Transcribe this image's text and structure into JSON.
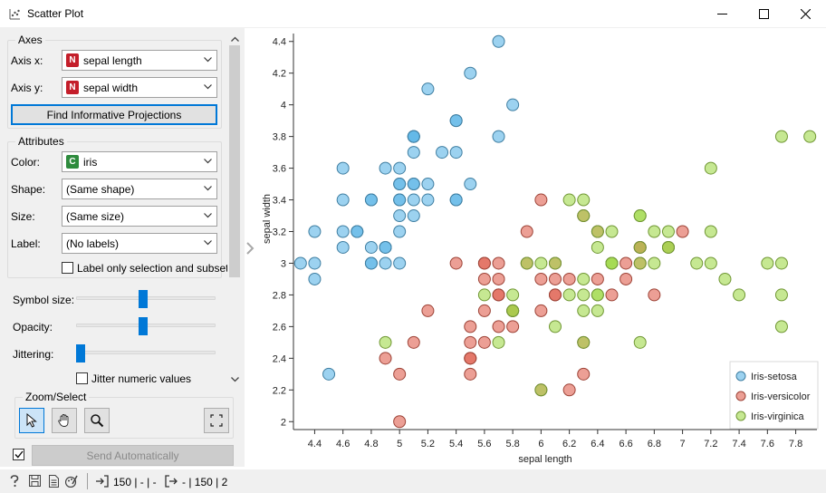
{
  "window": {
    "title": "Scatter Plot"
  },
  "axes": {
    "group_title": "Axes",
    "axis_x_label": "Axis x:",
    "axis_x_value": "sepal length",
    "axis_x_badge": "N",
    "axis_y_label": "Axis y:",
    "axis_y_value": "sepal width",
    "axis_y_badge": "N",
    "find_button": "Find Informative Projections"
  },
  "attributes": {
    "group_title": "Attributes",
    "color_label": "Color:",
    "color_value": "iris",
    "color_badge": "C",
    "shape_label": "Shape:",
    "shape_value": "(Same shape)",
    "size_label": "Size:",
    "size_value": "(Same size)",
    "label_label": "Label:",
    "label_value": "(No labels)",
    "label_only_checkbox": "Label only selection and subset"
  },
  "sliders": {
    "symbol_size_label": "Symbol size:",
    "symbol_size_level": 0.48,
    "opacity_label": "Opacity:",
    "opacity_level": 0.48,
    "jittering_label": "Jittering:",
    "jittering_level": 0.0,
    "jitter_numeric_label": "Jitter numeric values"
  },
  "zoom": {
    "group_title": "Zoom/Select"
  },
  "send": {
    "checkbox_checked": true,
    "button_label": "Send Automatically"
  },
  "statusbar": {
    "input_text": "150 | - | -",
    "output_text": "- | 150 | 2"
  },
  "colors": {
    "setosa": "#5ab4e6",
    "versicolor": "#e05f4f",
    "virginica": "#a0d84a",
    "accent": "#0078d7"
  },
  "chart_data": {
    "type": "scatter",
    "xlabel": "sepal length",
    "ylabel": "sepal width",
    "xlim": [
      4.25,
      7.95
    ],
    "ylim": [
      1.95,
      4.45
    ],
    "xticks": [
      "4.4",
      "4.6",
      "4.8",
      "5",
      "5.2",
      "5.4",
      "5.6",
      "5.8",
      "6",
      "6.2",
      "6.4",
      "6.6",
      "6.8",
      "7",
      "7.2",
      "7.4",
      "7.6",
      "7.8"
    ],
    "yticks": [
      "2",
      "2.2",
      "2.4",
      "2.6",
      "2.8",
      "3",
      "3.2",
      "3.4",
      "3.6",
      "3.8",
      "4",
      "4.2",
      "4.4"
    ],
    "legend_position": "bottom-right",
    "series": [
      {
        "name": "Iris-setosa",
        "color": "#5ab4e6",
        "points": [
          [
            5.1,
            3.5
          ],
          [
            4.9,
            3.0
          ],
          [
            4.7,
            3.2
          ],
          [
            4.6,
            3.1
          ],
          [
            5.0,
            3.6
          ],
          [
            5.4,
            3.9
          ],
          [
            4.6,
            3.4
          ],
          [
            5.0,
            3.4
          ],
          [
            4.4,
            2.9
          ],
          [
            4.9,
            3.1
          ],
          [
            5.4,
            3.7
          ],
          [
            4.8,
            3.4
          ],
          [
            4.8,
            3.0
          ],
          [
            4.3,
            3.0
          ],
          [
            5.8,
            4.0
          ],
          [
            5.7,
            4.4
          ],
          [
            5.4,
            3.9
          ],
          [
            5.1,
            3.5
          ],
          [
            5.7,
            3.8
          ],
          [
            5.1,
            3.8
          ],
          [
            5.4,
            3.4
          ],
          [
            5.1,
            3.7
          ],
          [
            4.6,
            3.6
          ],
          [
            5.1,
            3.3
          ],
          [
            4.8,
            3.4
          ],
          [
            5.0,
            3.0
          ],
          [
            5.0,
            3.4
          ],
          [
            5.2,
            3.5
          ],
          [
            5.2,
            3.4
          ],
          [
            4.7,
            3.2
          ],
          [
            4.8,
            3.1
          ],
          [
            5.4,
            3.4
          ],
          [
            5.2,
            4.1
          ],
          [
            5.5,
            4.2
          ],
          [
            4.9,
            3.1
          ],
          [
            5.0,
            3.2
          ],
          [
            5.5,
            3.5
          ],
          [
            4.9,
            3.6
          ],
          [
            4.4,
            3.0
          ],
          [
            5.1,
            3.4
          ],
          [
            5.0,
            3.5
          ],
          [
            4.5,
            2.3
          ],
          [
            4.4,
            3.2
          ],
          [
            5.0,
            3.5
          ],
          [
            5.1,
            3.8
          ],
          [
            4.8,
            3.0
          ],
          [
            5.1,
            3.8
          ],
          [
            4.6,
            3.2
          ],
          [
            5.3,
            3.7
          ],
          [
            5.0,
            3.3
          ]
        ]
      },
      {
        "name": "Iris-versicolor",
        "color": "#e05f4f",
        "points": [
          [
            7.0,
            3.2
          ],
          [
            6.4,
            3.2
          ],
          [
            6.9,
            3.1
          ],
          [
            5.5,
            2.3
          ],
          [
            6.5,
            2.8
          ],
          [
            5.7,
            2.8
          ],
          [
            6.3,
            3.3
          ],
          [
            4.9,
            2.4
          ],
          [
            6.6,
            2.9
          ],
          [
            5.2,
            2.7
          ],
          [
            5.0,
            2.0
          ],
          [
            5.9,
            3.0
          ],
          [
            6.0,
            2.2
          ],
          [
            6.1,
            2.9
          ],
          [
            5.6,
            2.9
          ],
          [
            6.7,
            3.1
          ],
          [
            5.6,
            3.0
          ],
          [
            5.8,
            2.7
          ],
          [
            6.2,
            2.2
          ],
          [
            5.6,
            2.5
          ],
          [
            5.9,
            3.2
          ],
          [
            6.1,
            2.8
          ],
          [
            6.3,
            2.5
          ],
          [
            6.1,
            2.8
          ],
          [
            6.4,
            2.9
          ],
          [
            6.6,
            3.0
          ],
          [
            6.8,
            2.8
          ],
          [
            6.7,
            3.0
          ],
          [
            6.0,
            2.9
          ],
          [
            5.7,
            2.6
          ],
          [
            5.5,
            2.4
          ],
          [
            5.5,
            2.4
          ],
          [
            5.8,
            2.7
          ],
          [
            6.0,
            2.7
          ],
          [
            5.4,
            3.0
          ],
          [
            6.0,
            3.4
          ],
          [
            6.7,
            3.1
          ],
          [
            6.3,
            2.3
          ],
          [
            5.6,
            3.0
          ],
          [
            5.5,
            2.5
          ],
          [
            5.5,
            2.6
          ],
          [
            6.1,
            3.0
          ],
          [
            5.8,
            2.6
          ],
          [
            5.0,
            2.3
          ],
          [
            5.6,
            2.7
          ],
          [
            5.7,
            3.0
          ],
          [
            5.7,
            2.9
          ],
          [
            6.2,
            2.9
          ],
          [
            5.1,
            2.5
          ],
          [
            5.7,
            2.8
          ]
        ]
      },
      {
        "name": "Iris-virginica",
        "color": "#a0d84a",
        "points": [
          [
            6.3,
            3.3
          ],
          [
            5.8,
            2.7
          ],
          [
            7.1,
            3.0
          ],
          [
            6.3,
            2.9
          ],
          [
            6.5,
            3.0
          ],
          [
            7.6,
            3.0
          ],
          [
            4.9,
            2.5
          ],
          [
            7.3,
            2.9
          ],
          [
            6.7,
            2.5
          ],
          [
            7.2,
            3.6
          ],
          [
            6.5,
            3.2
          ],
          [
            6.4,
            2.7
          ],
          [
            6.8,
            3.0
          ],
          [
            5.7,
            2.5
          ],
          [
            5.8,
            2.8
          ],
          [
            6.4,
            3.2
          ],
          [
            6.5,
            3.0
          ],
          [
            7.7,
            3.8
          ],
          [
            7.7,
            2.6
          ],
          [
            6.0,
            2.2
          ],
          [
            6.9,
            3.2
          ],
          [
            5.6,
            2.8
          ],
          [
            7.7,
            2.8
          ],
          [
            6.3,
            2.7
          ],
          [
            6.7,
            3.3
          ],
          [
            7.2,
            3.2
          ],
          [
            6.2,
            2.8
          ],
          [
            6.1,
            3.0
          ],
          [
            6.4,
            2.8
          ],
          [
            7.2,
            3.0
          ],
          [
            7.4,
            2.8
          ],
          [
            7.9,
            3.8
          ],
          [
            6.4,
            2.8
          ],
          [
            6.3,
            2.8
          ],
          [
            6.1,
            2.6
          ],
          [
            7.7,
            3.0
          ],
          [
            6.3,
            3.4
          ],
          [
            6.4,
            3.1
          ],
          [
            6.0,
            3.0
          ],
          [
            6.9,
            3.1
          ],
          [
            6.7,
            3.1
          ],
          [
            6.9,
            3.1
          ],
          [
            5.8,
            2.7
          ],
          [
            6.8,
            3.2
          ],
          [
            6.7,
            3.3
          ],
          [
            6.7,
            3.0
          ],
          [
            6.3,
            2.5
          ],
          [
            6.5,
            3.0
          ],
          [
            6.2,
            3.4
          ],
          [
            5.9,
            3.0
          ]
        ]
      }
    ]
  }
}
